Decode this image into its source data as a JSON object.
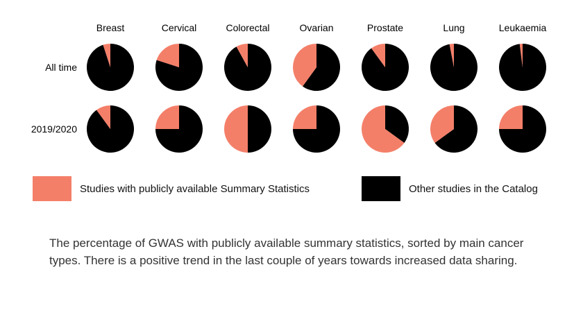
{
  "colors": {
    "public": "#f47f69",
    "other": "#000000"
  },
  "chart_data": {
    "type": "pie",
    "categories": [
      "Breast",
      "Cervical",
      "Colorectal",
      "Ovarian",
      "Prostate",
      "Lung",
      "Leukaemia"
    ],
    "rows": [
      "All time",
      "2019/2020"
    ],
    "legend": [
      "Studies with publicly available Summary Statistics",
      "Other studies in the Catalog"
    ],
    "public_share": [
      [
        0.05,
        0.2,
        0.08,
        0.4,
        0.1,
        0.03,
        0.02
      ],
      [
        0.1,
        0.25,
        0.5,
        0.25,
        0.65,
        0.35,
        0.25
      ]
    ]
  },
  "legend_items": [
    {
      "label": "Studies with publicly available Summary Statistics",
      "color": "#f47f69"
    },
    {
      "label": "Other studies in the Catalog",
      "color": "#000000"
    }
  ],
  "caption": "The percentage of GWAS with publicly available summary statistics, sorted by main cancer types.  There is a positive trend in the last couple of years towards increased data sharing."
}
